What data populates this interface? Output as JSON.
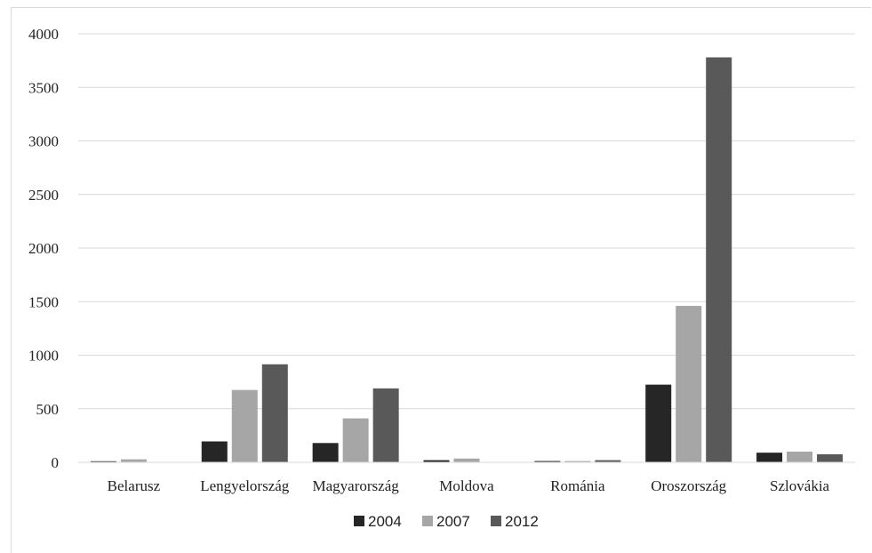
{
  "chart_data": {
    "type": "bar",
    "title": "",
    "xlabel": "",
    "ylabel": "",
    "ylim": [
      0,
      4000
    ],
    "yticks": [
      0,
      500,
      1000,
      1500,
      2000,
      2500,
      3000,
      3500,
      4000
    ],
    "grid": true,
    "legend_position": "bottom",
    "categories": [
      "Belarusz",
      "Lengyelország",
      "Magyarország",
      "Moldova",
      "Románia",
      "Oroszország",
      "Szlovákia"
    ],
    "series": [
      {
        "name": "2004",
        "color": "#262626",
        "values": [
          10,
          195,
          180,
          20,
          12,
          725,
          90
        ]
      },
      {
        "name": "2007",
        "color": "#a6a6a6",
        "values": [
          28,
          675,
          410,
          35,
          12,
          1460,
          100
        ]
      },
      {
        "name": "2012",
        "color": "#595959",
        "values": [
          0,
          915,
          690,
          0,
          20,
          3780,
          75
        ]
      }
    ]
  }
}
